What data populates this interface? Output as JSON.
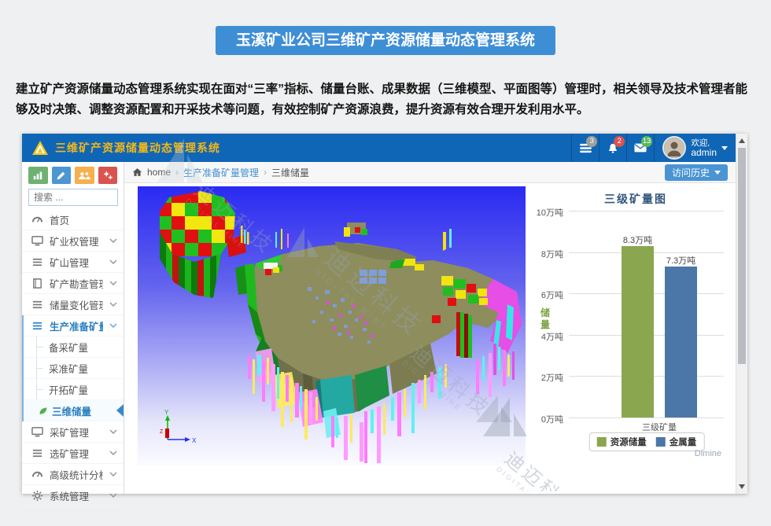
{
  "banner": {
    "title": "玉溪矿业公司三维矿产资源储量动态管理系统",
    "color": "#3e8ed6"
  },
  "intro": {
    "text": "建立矿产资源储量动态管理系统实现在面对“三率”指标、储量台账、成果数据（三维模型、平面图等）管理时，相关领导及技术管理者能够及时决策、调整资源配置和开采技术等问题，有效控制矿产资源浪费，提升资源有效合理开发利用水平。"
  },
  "app": {
    "header": {
      "title": "三维矿产资源储量动态管理系统",
      "color": "#1066b6",
      "badges": [
        {
          "icon": "list-icon",
          "count": "3",
          "color": "#9e9e9e"
        },
        {
          "icon": "bell-icon",
          "count": "2",
          "color": "#d9534f"
        },
        {
          "icon": "mail-icon",
          "count": "13",
          "color": "#5cb85c"
        }
      ],
      "user": {
        "greeting": "欢迎,",
        "name": "admin"
      }
    },
    "sidebar": {
      "search_placeholder": "搜索 ...",
      "quick_buttons": [
        {
          "name": "chart",
          "color": "#6fb173"
        },
        {
          "name": "pencil",
          "color": "#4a97d2"
        },
        {
          "name": "users",
          "color": "#f6b04e"
        },
        {
          "name": "cogs",
          "color": "#d9544f"
        }
      ],
      "menu": [
        {
          "label": "首页",
          "icon": "gauge",
          "expandable": false
        },
        {
          "label": "矿业权管理",
          "icon": "monitor",
          "expandable": true
        },
        {
          "label": "矿山管理",
          "icon": "list",
          "expandable": true
        },
        {
          "label": "矿产勘查管理",
          "icon": "book",
          "expandable": true
        },
        {
          "label": "储量变化管理",
          "icon": "list",
          "expandable": true
        },
        {
          "label": "生产准备矿量管理",
          "icon": "list",
          "expandable": true,
          "active": true,
          "children": [
            "备采矿量",
            "采准矿量",
            "开拓矿量",
            "三维储量"
          ],
          "active_child": "三维储量"
        },
        {
          "label": "采矿管理",
          "icon": "monitor",
          "expandable": true
        },
        {
          "label": "选矿管理",
          "icon": "list",
          "expandable": true
        },
        {
          "label": "高级统计分析",
          "icon": "gauge",
          "expandable": true
        },
        {
          "label": "系统管理",
          "icon": "gear",
          "expandable": true
        }
      ]
    },
    "breadcrumb": {
      "home": "home",
      "separator": "›",
      "items": [
        "生产准备矿量管理",
        "三维储量"
      ]
    },
    "history_button": "访问历史",
    "viewport": {
      "axis": {
        "x": "X",
        "y": "Y",
        "z": "Z"
      }
    }
  },
  "chart_data": {
    "type": "bar",
    "title": "三级矿量图",
    "categories": [
      "三级矿量"
    ],
    "series": [
      {
        "name": "资源储量",
        "values": [
          8.3
        ],
        "label": "8.3万吨",
        "color": "#8aa64f"
      },
      {
        "name": "金属量",
        "values": [
          7.3
        ],
        "label": "7.3万吨",
        "color": "#4a77a8"
      }
    ],
    "ylabel": "储量",
    "ylim": [
      0,
      10
    ],
    "yticks": [
      0,
      2,
      4,
      6,
      8,
      10
    ],
    "ytick_suffix": "万吨",
    "grid": true,
    "legend_position": "bottom"
  },
  "watermark": {
    "cn": "迪迈科技",
    "en": "DIGITAL MINE",
    "dimine": "Dimine"
  }
}
